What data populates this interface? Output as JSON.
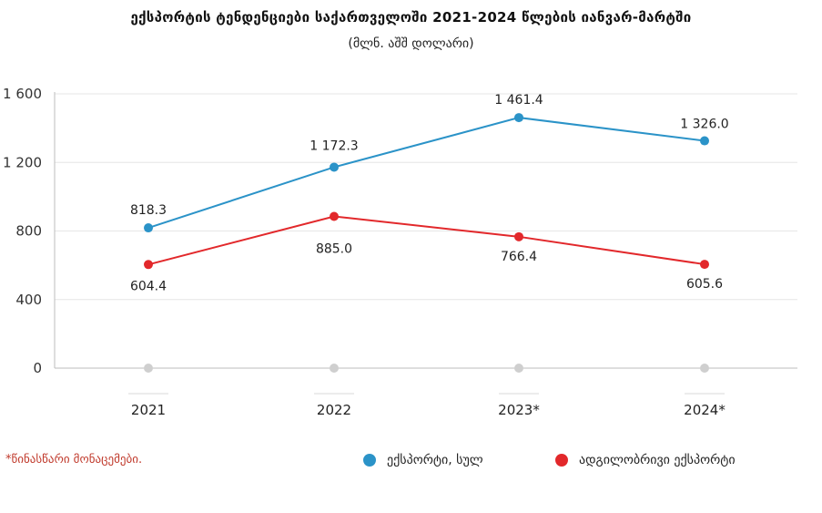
{
  "header": {
    "title": "ექსპორტის ტენდენციები საქართველოში 2021-2024 წლების იანვარ-მარტში",
    "subtitle": "(მლნ. აშშ დოლარი)"
  },
  "footnote": "*წინასწარი მონაცემები.",
  "colors": {
    "total": "#2b93c8",
    "domestic": "#e2282b",
    "grid": "#e6e6e6",
    "zero_marker": "#cfcfcf"
  },
  "chart_data": {
    "type": "line",
    "categories": [
      "2021",
      "2022",
      "2023*",
      "2024*"
    ],
    "series": [
      {
        "name": "ექსპორტი, სულ",
        "values": [
          818.3,
          1172.3,
          1461.4,
          1326.0
        ],
        "labels": [
          "818.3",
          "1 172.3",
          "1 461.4",
          "1 326.0"
        ]
      },
      {
        "name": "ადგილობრივი ექსპორტი",
        "values": [
          604.4,
          885.0,
          766.4,
          605.6
        ],
        "labels": [
          "604.4",
          "885.0",
          "766.4",
          "605.6"
        ]
      }
    ],
    "ylim": [
      0,
      1600
    ],
    "yticks": [
      0,
      400,
      800,
      1200,
      1600
    ],
    "ytick_labels": [
      "0",
      "400",
      "800",
      "1 200",
      "1 600"
    ],
    "grid": true,
    "legend_position": "bottom-right"
  }
}
